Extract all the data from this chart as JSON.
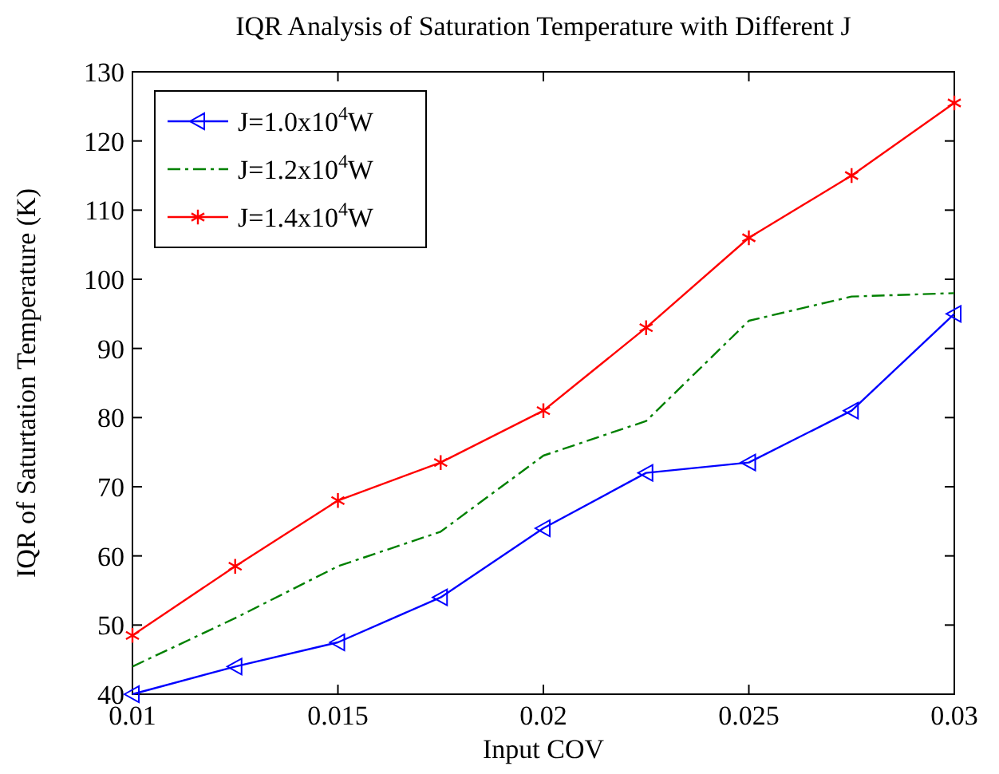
{
  "chart_data": {
    "type": "line",
    "title": "IQR Analysis of Saturation Temperature with Different J",
    "xlabel": "Input COV",
    "ylabel": "IQR of Saturtation Temperature (K)",
    "x": [
      0.01,
      0.0125,
      0.015,
      0.0175,
      0.02,
      0.0225,
      0.025,
      0.0275,
      0.03
    ],
    "series": [
      {
        "name": "J=1.0x10$^{4}$W",
        "color": "#0000ff",
        "marker": "triangle",
        "line_style": "solid",
        "values": [
          40,
          44,
          47.5,
          54,
          64,
          72,
          73.5,
          81,
          95
        ]
      },
      {
        "name": "J=1.2x10$^{4}$W",
        "color": "#008000",
        "marker": "none",
        "line_style": "dashed",
        "values": [
          44,
          51,
          58.5,
          63.5,
          74.5,
          79.5,
          94,
          97.5,
          98
        ]
      },
      {
        "name": "J=1.4x10$^{4}$W",
        "color": "#ff0000",
        "marker": "cross",
        "line_style": "solid",
        "values": [
          48.5,
          58.5,
          68,
          73.5,
          81,
          93,
          106,
          115,
          125.5
        ]
      }
    ],
    "xlim": [
      0.01,
      0.03
    ],
    "xticks": [
      0.01,
      0.015,
      0.02,
      0.025,
      0.03
    ],
    "ylim": [
      40,
      130
    ],
    "yticks": [
      40,
      50,
      60,
      70,
      80,
      90,
      100,
      110,
      120,
      130
    ],
    "grid": false,
    "legend": "top left"
  }
}
